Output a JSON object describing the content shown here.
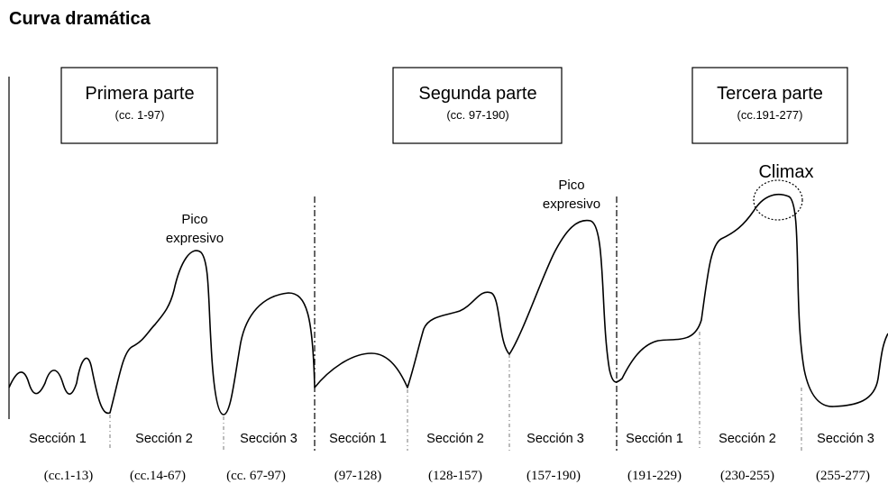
{
  "title": "Curva dramática",
  "parts": [
    {
      "label": "Primera parte",
      "range": "(cc. 1-97)"
    },
    {
      "label": "Segunda parte",
      "range": "(cc. 97-190)"
    },
    {
      "label": "Tercera parte",
      "range": "(cc.191-277)"
    }
  ],
  "annotations": {
    "peak1_line1": "Pico",
    "peak1_line2": "expresivo",
    "peak2_line1": "Pico",
    "peak2_line2": "expresivo",
    "climax": "Climax"
  },
  "sections": [
    {
      "label": "Sección 1",
      "range": "(cc.1-13)"
    },
    {
      "label": "Sección 2",
      "range": "(cc.14-67)"
    },
    {
      "label": "Sección 3",
      "range": "(cc. 67-97)"
    },
    {
      "label": "Sección 1",
      "range": "(97-128)"
    },
    {
      "label": "Sección 2",
      "range": "(128-157)"
    },
    {
      "label": "Sección 3",
      "range": "(157-190)"
    },
    {
      "label": "Sección 1",
      "range": "(191-229)"
    },
    {
      "label": "Sección 2",
      "range": "(230-255)"
    },
    {
      "label": "Sección 3",
      "range": "(255-277)"
    }
  ]
}
